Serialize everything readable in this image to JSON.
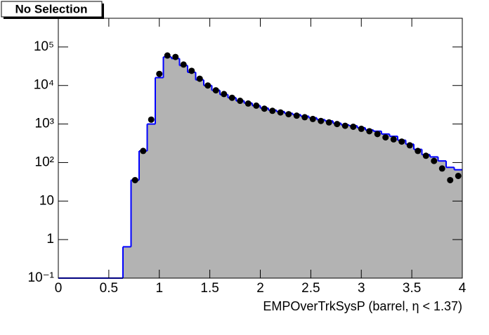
{
  "chart_data": {
    "type": "histogram",
    "title": "No Selection",
    "xlabel": "EMPOverTrkSysP (barrel,   η < 1.37)",
    "bins": [
      0,
      0.08,
      0.16,
      0.24,
      0.32,
      0.4,
      0.48,
      0.56,
      0.64,
      0.72,
      0.8,
      0.88,
      0.96,
      1.04,
      1.12,
      1.2,
      1.28,
      1.36,
      1.44,
      1.52,
      1.6,
      1.68,
      1.76,
      1.84,
      1.92,
      2,
      2.08,
      2.16,
      2.24,
      2.32,
      2.4,
      2.48,
      2.56,
      2.64,
      2.72,
      2.8,
      2.88,
      2.96,
      3.04,
      3.12,
      3.2,
      3.28,
      3.36,
      3.44,
      3.52,
      3.6,
      3.68,
      3.76,
      3.84,
      3.92,
      4
    ],
    "series": [
      {
        "color": "#0000ff",
        "fill": "#b3b3b3",
        "style": "step",
        "values": [
          0,
          0,
          0,
          0,
          0,
          0,
          0,
          0,
          0.65,
          35,
          200,
          1000,
          16000,
          55000,
          50000,
          33000,
          22000,
          14000,
          10000,
          7500,
          5800,
          4800,
          4000,
          3500,
          3000,
          2600,
          2300,
          2100,
          1900,
          1750,
          1600,
          1450,
          1300,
          1200,
          1050,
          950,
          900,
          800,
          700,
          650,
          550,
          480,
          380,
          300,
          220,
          160,
          140,
          110,
          75,
          65
        ]
      },
      {
        "color": "#000000",
        "style": "points",
        "values": [
          null,
          null,
          null,
          null,
          null,
          null,
          null,
          null,
          null,
          35,
          200,
          1300,
          20000,
          60000,
          55000,
          35000,
          24000,
          15000,
          10000,
          7500,
          6000,
          4800,
          4000,
          3400,
          3000,
          2500,
          2200,
          2000,
          1800,
          1650,
          1500,
          1350,
          1200,
          1100,
          1000,
          900,
          850,
          750,
          650,
          550,
          450,
          400,
          350,
          280,
          200,
          150,
          110,
          70,
          35,
          45
        ]
      }
    ],
    "xlim": [
      0,
      4
    ],
    "xticks": [
      0,
      0.5,
      1,
      1.5,
      2,
      2.5,
      3,
      3.5,
      4
    ],
    "ylim": [
      0.1,
      556000
    ],
    "log_y": true,
    "yticks": [
      {
        "value": 0.1,
        "label": "10⁻¹"
      },
      1,
      10,
      {
        "value": 100,
        "label": "10²"
      },
      {
        "value": 1000,
        "label": "10³"
      },
      {
        "value": 10000,
        "label": "10⁴"
      },
      {
        "value": 100000,
        "label": "10⁵"
      }
    ]
  }
}
